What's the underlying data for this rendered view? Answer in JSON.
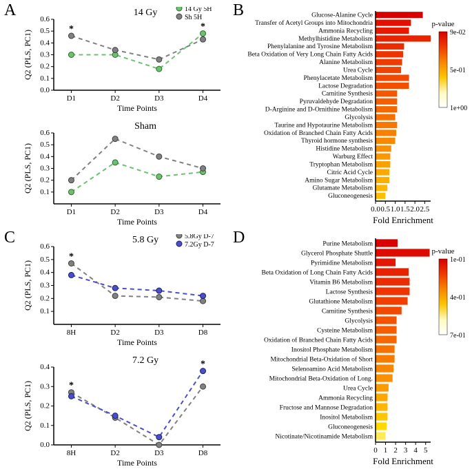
{
  "panel_labels": {
    "A": "A",
    "B": "B",
    "C": "C",
    "D": "D"
  },
  "panelA": {
    "top": {
      "title": "14 Gy",
      "ylim": [
        0,
        0.6
      ],
      "yticks": [
        0,
        0.1,
        0.2,
        0.3,
        0.4,
        0.5,
        0.6
      ],
      "xlabel": "Time Points",
      "ylabel": "Q2 (PLS, PC1)",
      "xcats": [
        "D1",
        "D2",
        "D3",
        "D4"
      ],
      "legend_pos": "top-right",
      "series": [
        {
          "name": "14 Gy 5H",
          "color": "#6cc070",
          "marker_fill": "#6cc070",
          "marker_stroke": "#2e6b2e",
          "values": [
            0.3,
            0.3,
            0.18,
            0.48
          ]
        },
        {
          "name": "Sh 5H",
          "color": "#808080",
          "marker_fill": "#808080",
          "marker_stroke": "#404040",
          "values": [
            0.46,
            0.34,
            0.26,
            0.43
          ]
        }
      ],
      "stars": [
        0,
        3
      ]
    },
    "bottom": {
      "title": "Sham",
      "ylim": [
        0,
        0.6
      ],
      "yticks": [
        0.1,
        0.2,
        0.3,
        0.4,
        0.5,
        0.6
      ],
      "xlabel": "Time Points",
      "ylabel": "Q2 (PLS, PC1)",
      "xcats": [
        "D1",
        "D2",
        "D3",
        "D4"
      ],
      "series": [
        {
          "name": "14 Gy 5H",
          "color": "#6cc070",
          "marker_fill": "#6cc070",
          "marker_stroke": "#2e6b2e",
          "values": [
            0.1,
            0.35,
            0.23,
            0.27
          ]
        },
        {
          "name": "Sh 5H",
          "color": "#808080",
          "marker_fill": "#808080",
          "marker_stroke": "#404040",
          "values": [
            0.2,
            0.55,
            0.4,
            0.3
          ]
        }
      ],
      "stars": []
    }
  },
  "panelC": {
    "top": {
      "title": "5.8 Gy",
      "ylim": [
        0,
        0.6
      ],
      "yticks": [
        0.1,
        0.2,
        0.3,
        0.4,
        0.5,
        0.6
      ],
      "xlabel": "Time Points",
      "ylabel": "Q2 (PLS, PC1)",
      "xcats": [
        "8H",
        "D2",
        "D3",
        "D8"
      ],
      "series": [
        {
          "name": "5.8Gy D-7",
          "color": "#808080",
          "marker_fill": "#808080",
          "marker_stroke": "#404040",
          "values": [
            0.47,
            0.22,
            0.21,
            0.18
          ]
        },
        {
          "name": "7.2Gy D-7",
          "color": "#4a4fc7",
          "marker_fill": "#4a4fc7",
          "marker_stroke": "#1a1f6a",
          "values": [
            0.38,
            0.28,
            0.26,
            0.22
          ]
        }
      ],
      "stars": [
        0
      ]
    },
    "bottom": {
      "title": "7.2 Gy",
      "ylim": [
        0,
        0.4
      ],
      "yticks": [
        0,
        0.1,
        0.2,
        0.3,
        0.4
      ],
      "xlabel": "Time Points",
      "ylabel": "Q2 (PLS, PC1)",
      "xcats": [
        "8H",
        "D2",
        "D3",
        "D8"
      ],
      "series": [
        {
          "name": "5.8Gy D-7",
          "color": "#808080",
          "marker_fill": "#808080",
          "marker_stroke": "#404040",
          "values": [
            0.27,
            0.14,
            0.0,
            0.3
          ]
        },
        {
          "name": "7.2Gy D-7",
          "color": "#4a4fc7",
          "marker_fill": "#4a4fc7",
          "marker_stroke": "#1a1f6a",
          "values": [
            0.25,
            0.15,
            0.04,
            0.38
          ]
        }
      ],
      "stars": [
        0,
        3
      ]
    }
  },
  "panelB": {
    "xlabel": "Fold Enrichment",
    "xlim": [
      0,
      2.8
    ],
    "xticks": [
      0.0,
      0.5,
      1.0,
      1.5,
      2.0,
      2.5
    ],
    "colorbar": {
      "title": "p-value",
      "labels": [
        "9e-02",
        "5e-01",
        "1e+00"
      ],
      "gradient": [
        "#d90000",
        "#f03b00",
        "#f78500",
        "#fbc500",
        "#fffbc0",
        "#ffffff"
      ]
    },
    "items": [
      {
        "label": "Glucose-Alanine Cycle",
        "value": 2.4,
        "color": "#d90000"
      },
      {
        "label": "Transfer of Acetyl Groups into Mitochondria",
        "value": 1.8,
        "color": "#e31000"
      },
      {
        "label": "Ammonia Recycling",
        "value": 1.7,
        "color": "#e61a00"
      },
      {
        "label": "Methylhistidine Metabolism",
        "value": 2.8,
        "color": "#e82300"
      },
      {
        "label": "Phenylalanine and Tyrosine Metabolism",
        "value": 1.45,
        "color": "#ea2c00"
      },
      {
        "label": "Beta Oxidation of Very Long Chain Fatty Acids",
        "value": 1.4,
        "color": "#ec3300"
      },
      {
        "label": "Alanine Metabolism",
        "value": 1.35,
        "color": "#ee3b00"
      },
      {
        "label": "Urea Cycle",
        "value": 1.3,
        "color": "#f04200"
      },
      {
        "label": "Phenylacetate Metabolism",
        "value": 1.7,
        "color": "#f14900"
      },
      {
        "label": "Lactose Degradation",
        "value": 1.7,
        "color": "#f25000"
      },
      {
        "label": "Carnitine Synthesis",
        "value": 1.1,
        "color": "#f35800"
      },
      {
        "label": "Pyruvaldehyde Degradation",
        "value": 1.1,
        "color": "#f46000"
      },
      {
        "label": "D-Arginine and D-Ornithine Metabolism",
        "value": 1.1,
        "color": "#f56800"
      },
      {
        "label": "Glycolysis",
        "value": 1.0,
        "color": "#f67000"
      },
      {
        "label": "Taurine and Hypotaurine Metabolism",
        "value": 1.1,
        "color": "#f77800"
      },
      {
        "label": "Oxidation of Branched Chain Fatty Acids",
        "value": 1.05,
        "color": "#f88000"
      },
      {
        "label": "Thyroid hormone synthesis",
        "value": 1.0,
        "color": "#f98800"
      },
      {
        "label": "Histidine Metabolism",
        "value": 0.8,
        "color": "#fa9000"
      },
      {
        "label": "Warburg Effect",
        "value": 0.75,
        "color": "#fb9800"
      },
      {
        "label": "Tryptophan Metabolism",
        "value": 0.75,
        "color": "#fc9f00"
      },
      {
        "label": "Citric Acid Cycle",
        "value": 0.7,
        "color": "#fda700"
      },
      {
        "label": "Amino Sugar Metabolism",
        "value": 0.7,
        "color": "#fdae00"
      },
      {
        "label": "Glutamate Metabolism",
        "value": 0.6,
        "color": "#feb600"
      },
      {
        "label": "Gluconeogenesis",
        "value": 0.5,
        "color": "#febe00"
      }
    ]
  },
  "panelD": {
    "xlabel": "Fold Enrichment",
    "xlim": [
      0,
      5.5
    ],
    "xticks": [
      0,
      1,
      2,
      3,
      4,
      5
    ],
    "colorbar": {
      "title": "p-value",
      "labels": [
        "1e-01",
        "4e-01",
        "7e-01"
      ],
      "gradient": [
        "#d90000",
        "#f03b00",
        "#f78500",
        "#fbc500",
        "#fffbc0",
        "#ffffff"
      ]
    },
    "items": [
      {
        "label": "Purine Metabolism",
        "value": 2.2,
        "color": "#d90000"
      },
      {
        "label": "Glycerol Phosphate Shuttle",
        "value": 5.4,
        "color": "#de0c00"
      },
      {
        "label": "Pyrimidine Metabolism",
        "value": 2.0,
        "color": "#e31700"
      },
      {
        "label": "Beta Oxidation of Long Chain Fatty Acids",
        "value": 3.3,
        "color": "#e72200"
      },
      {
        "label": "Vitamin B6 Metabolism",
        "value": 3.4,
        "color": "#eb2c00"
      },
      {
        "label": "Lactose Synthesis",
        "value": 3.4,
        "color": "#ee3500"
      },
      {
        "label": "Glutathione Metabolism",
        "value": 3.2,
        "color": "#f03f00"
      },
      {
        "label": "Carnitine Synthesis",
        "value": 2.6,
        "color": "#f24900"
      },
      {
        "label": "Glycolysis",
        "value": 2.1,
        "color": "#f45300"
      },
      {
        "label": "Cysteine Metabolism",
        "value": 2.1,
        "color": "#f55d00"
      },
      {
        "label": "Oxidation of Branched Chain Fatty Acids",
        "value": 2.1,
        "color": "#f66700"
      },
      {
        "label": "Inositol Phosphate Metabolism",
        "value": 1.9,
        "color": "#f77100"
      },
      {
        "label": "Mitochondrial Beta-Oxidation of Short",
        "value": 1.9,
        "color": "#f87b00"
      },
      {
        "label": "Selenoamino Acid Metabolism",
        "value": 1.8,
        "color": "#f98500"
      },
      {
        "label": "Mitochondrial Beta-Oxidation of Long.",
        "value": 1.7,
        "color": "#fa9000"
      },
      {
        "label": "Urea Cycle",
        "value": 1.3,
        "color": "#fc9b00"
      },
      {
        "label": "Ammonia Recycling",
        "value": 1.2,
        "color": "#fda800"
      },
      {
        "label": "Fructose and Mannose Degradation",
        "value": 1.2,
        "color": "#feb600"
      },
      {
        "label": "Inositol Metabolism",
        "value": 1.2,
        "color": "#fec600"
      },
      {
        "label": "Gluconeogenesis",
        "value": 1.1,
        "color": "#ffd900"
      },
      {
        "label": "Nicotinate/Nicotinamide Metabolism",
        "value": 1.0,
        "color": "#ffeb55"
      }
    ]
  },
  "style": {
    "background_color": "#ffffff",
    "axis_color": "#000000",
    "grid_color": "#cccccc",
    "dash": "6,5",
    "marker_size": 4,
    "line_width": 2,
    "star_fontsize": 14,
    "bar_stroke": "#000000",
    "bar_stroke_width": 0
  }
}
